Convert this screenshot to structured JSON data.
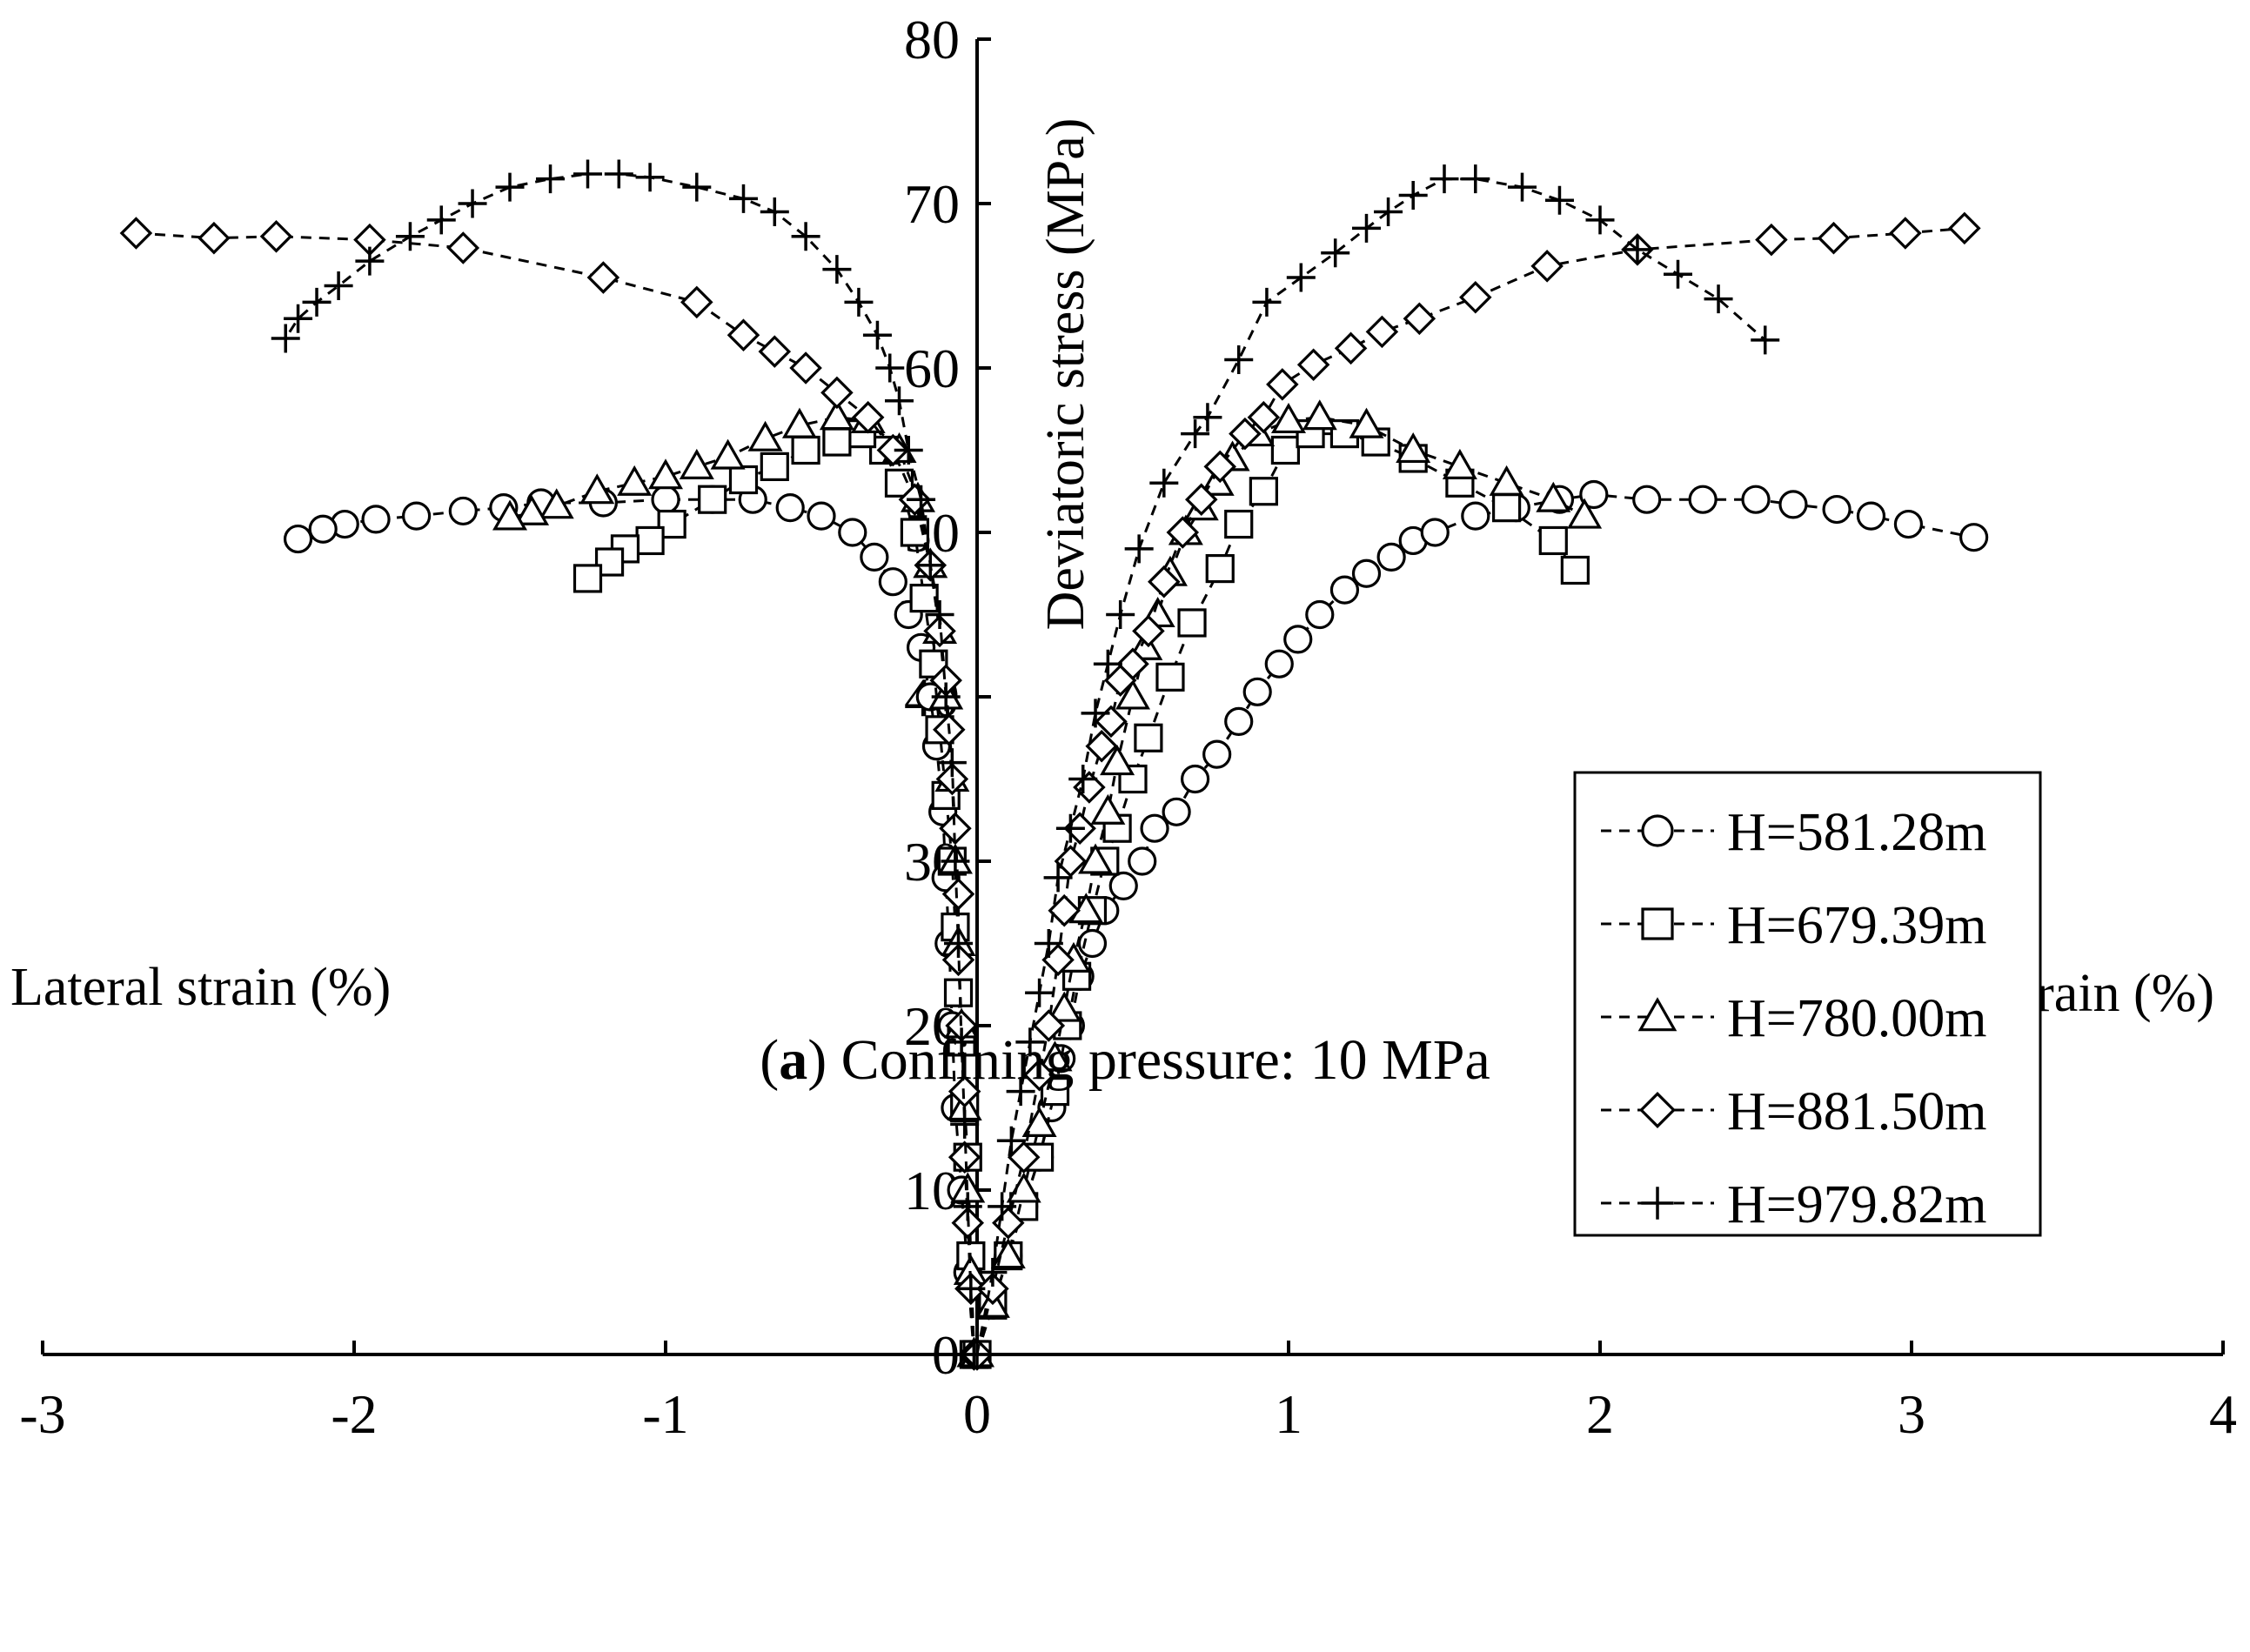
{
  "chart_data": {
    "type": "line",
    "caption": {
      "letter": "a",
      "text": " Confining pressure: 10 MPa"
    },
    "ylabel": "Deviatoric stress (MPa)",
    "xlabel_left": "Lateral strain (%)",
    "xlabel_right": "Axial strain (%)",
    "xlim": [
      -3,
      4
    ],
    "ylim": [
      0,
      80
    ],
    "xticks": [
      -3,
      -2,
      -1,
      0,
      1,
      2,
      3,
      4
    ],
    "xtick_labels": [
      "-3",
      "-2",
      "-1",
      "0",
      "1",
      "2",
      "3",
      "4"
    ],
    "yticks": [
      0,
      10,
      20,
      30,
      40,
      50,
      60,
      70,
      80
    ],
    "ytick_labels": [
      "0",
      "10",
      "20",
      "30",
      "40",
      "50",
      "60",
      "70",
      "80"
    ],
    "legend_position": "right",
    "series": [
      {
        "name": "H=581.28m",
        "marker": "circle",
        "lateral": [
          [
            -0.01,
            0
          ],
          [
            -0.03,
            5
          ],
          [
            -0.05,
            10
          ],
          [
            -0.07,
            15
          ],
          [
            -0.08,
            20
          ],
          [
            -0.09,
            25
          ],
          [
            -0.1,
            29
          ],
          [
            -0.11,
            33
          ],
          [
            -0.13,
            37
          ],
          [
            -0.15,
            40
          ],
          [
            -0.18,
            43
          ],
          [
            -0.22,
            45
          ],
          [
            -0.27,
            47
          ],
          [
            -0.33,
            48.5
          ],
          [
            -0.4,
            50
          ],
          [
            -0.5,
            51
          ],
          [
            -0.6,
            51.5
          ],
          [
            -0.72,
            52
          ],
          [
            -0.85,
            52
          ],
          [
            -1.0,
            52
          ],
          [
            -1.2,
            51.8
          ],
          [
            -1.4,
            51.8
          ],
          [
            -1.52,
            51.5
          ],
          [
            -1.65,
            51.3
          ],
          [
            -1.8,
            51
          ],
          [
            -1.93,
            50.8
          ],
          [
            -2.03,
            50.5
          ],
          [
            -2.1,
            50.2
          ],
          [
            -2.18,
            49.6
          ]
        ],
        "axial": [
          [
            0.0,
            0
          ],
          [
            0.05,
            3
          ],
          [
            0.1,
            6
          ],
          [
            0.15,
            9
          ],
          [
            0.2,
            12
          ],
          [
            0.24,
            15
          ],
          [
            0.27,
            18
          ],
          [
            0.3,
            20
          ],
          [
            0.33,
            23
          ],
          [
            0.37,
            25
          ],
          [
            0.41,
            27
          ],
          [
            0.47,
            28.5
          ],
          [
            0.53,
            30
          ],
          [
            0.57,
            32
          ],
          [
            0.64,
            33
          ],
          [
            0.7,
            35
          ],
          [
            0.77,
            36.5
          ],
          [
            0.84,
            38.5
          ],
          [
            0.9,
            40.3
          ],
          [
            0.97,
            42
          ],
          [
            1.03,
            43.5
          ],
          [
            1.1,
            45
          ],
          [
            1.18,
            46.5
          ],
          [
            1.25,
            47.5
          ],
          [
            1.33,
            48.5
          ],
          [
            1.4,
            49.5
          ],
          [
            1.47,
            50
          ],
          [
            1.6,
            51
          ],
          [
            1.73,
            51.5
          ],
          [
            1.87,
            52
          ],
          [
            1.98,
            52.3
          ],
          [
            2.15,
            52
          ],
          [
            2.33,
            52
          ],
          [
            2.5,
            52
          ],
          [
            2.62,
            51.7
          ],
          [
            2.76,
            51.4
          ],
          [
            2.87,
            51
          ],
          [
            2.99,
            50.5
          ],
          [
            3.2,
            49.7
          ]
        ]
      },
      {
        "name": "H=679.39m",
        "marker": "square",
        "lateral": [
          [
            -0.01,
            0
          ],
          [
            -0.02,
            6
          ],
          [
            -0.03,
            12
          ],
          [
            -0.04,
            15
          ],
          [
            -0.05,
            19
          ],
          [
            -0.06,
            22
          ],
          [
            -0.07,
            26
          ],
          [
            -0.08,
            30
          ],
          [
            -0.1,
            34
          ],
          [
            -0.12,
            38
          ],
          [
            -0.14,
            42
          ],
          [
            -0.17,
            46
          ],
          [
            -0.2,
            50
          ],
          [
            -0.25,
            53
          ],
          [
            -0.3,
            55
          ],
          [
            -0.37,
            56
          ],
          [
            -0.45,
            55.5
          ],
          [
            -0.55,
            55
          ],
          [
            -0.65,
            54
          ],
          [
            -0.75,
            53.2
          ],
          [
            -0.85,
            52
          ],
          [
            -0.98,
            50.5
          ],
          [
            -1.05,
            49.5
          ],
          [
            -1.13,
            49
          ],
          [
            -1.18,
            48.2
          ],
          [
            -1.25,
            47.2
          ]
        ],
        "axial": [
          [
            0.0,
            0
          ],
          [
            0.05,
            3
          ],
          [
            0.1,
            6
          ],
          [
            0.15,
            9
          ],
          [
            0.2,
            12
          ],
          [
            0.25,
            16
          ],
          [
            0.29,
            20
          ],
          [
            0.32,
            23
          ],
          [
            0.37,
            27
          ],
          [
            0.41,
            30
          ],
          [
            0.45,
            32
          ],
          [
            0.5,
            35
          ],
          [
            0.55,
            37.5
          ],
          [
            0.62,
            41.2
          ],
          [
            0.69,
            44.5
          ],
          [
            0.78,
            47.8
          ],
          [
            0.84,
            50.5
          ],
          [
            0.92,
            52.5
          ],
          [
            0.99,
            55
          ],
          [
            1.07,
            56
          ],
          [
            1.18,
            56
          ],
          [
            1.28,
            55.5
          ],
          [
            1.4,
            54.5
          ],
          [
            1.55,
            53
          ],
          [
            1.7,
            51.5
          ],
          [
            1.85,
            49.5
          ],
          [
            1.92,
            47.7
          ]
        ]
      },
      {
        "name": "H=780.00m",
        "marker": "triangle",
        "lateral": [
          [
            -0.01,
            0
          ],
          [
            -0.02,
            5
          ],
          [
            -0.03,
            10
          ],
          [
            -0.04,
            15
          ],
          [
            -0.05,
            20
          ],
          [
            -0.06,
            25
          ],
          [
            -0.07,
            30
          ],
          [
            -0.08,
            35
          ],
          [
            -0.1,
            40
          ],
          [
            -0.12,
            44
          ],
          [
            -0.15,
            48
          ],
          [
            -0.19,
            52
          ],
          [
            -0.25,
            55
          ],
          [
            -0.35,
            56.8
          ],
          [
            -0.45,
            57
          ],
          [
            -0.57,
            56.5
          ],
          [
            -0.68,
            55.7
          ],
          [
            -0.8,
            54.6
          ],
          [
            -0.9,
            54
          ],
          [
            -1.0,
            53.4
          ],
          [
            -1.1,
            53
          ],
          [
            -1.22,
            52.5
          ],
          [
            -1.35,
            51.6
          ],
          [
            -1.43,
            51.2
          ],
          [
            -1.5,
            50.9
          ]
        ],
        "axial": [
          [
            0.0,
            0
          ],
          [
            0.05,
            3
          ],
          [
            0.1,
            6
          ],
          [
            0.15,
            10
          ],
          [
            0.2,
            14
          ],
          [
            0.25,
            18
          ],
          [
            0.28,
            21
          ],
          [
            0.31,
            24
          ],
          [
            0.35,
            27
          ],
          [
            0.38,
            30
          ],
          [
            0.42,
            33
          ],
          [
            0.45,
            36
          ],
          [
            0.5,
            40
          ],
          [
            0.54,
            43
          ],
          [
            0.58,
            45
          ],
          [
            0.62,
            47.5
          ],
          [
            0.67,
            50
          ],
          [
            0.72,
            51.5
          ],
          [
            0.77,
            53
          ],
          [
            0.82,
            54.5
          ],
          [
            0.9,
            56
          ],
          [
            1.0,
            56.8
          ],
          [
            1.1,
            57
          ],
          [
            1.25,
            56.5
          ],
          [
            1.4,
            55
          ],
          [
            1.55,
            54
          ],
          [
            1.7,
            53
          ],
          [
            1.85,
            52
          ],
          [
            1.95,
            51
          ]
        ]
      },
      {
        "name": "H=881.50m",
        "marker": "diamond",
        "lateral": [
          [
            -0.01,
            0
          ],
          [
            -0.02,
            4
          ],
          [
            -0.03,
            8
          ],
          [
            -0.04,
            12
          ],
          [
            -0.04,
            16
          ],
          [
            -0.05,
            20
          ],
          [
            -0.06,
            24
          ],
          [
            -0.06,
            28
          ],
          [
            -0.07,
            32
          ],
          [
            -0.08,
            35
          ],
          [
            -0.09,
            38
          ],
          [
            -0.1,
            41
          ],
          [
            -0.12,
            44
          ],
          [
            -0.15,
            48
          ],
          [
            -0.2,
            52
          ],
          [
            -0.27,
            55
          ],
          [
            -0.35,
            57
          ],
          [
            -0.45,
            58.5
          ],
          [
            -0.55,
            60
          ],
          [
            -0.65,
            61
          ],
          [
            -0.75,
            62
          ],
          [
            -0.9,
            64
          ],
          [
            -1.2,
            65.5
          ],
          [
            -1.65,
            67.3
          ],
          [
            -1.95,
            67.8
          ],
          [
            -2.25,
            68
          ],
          [
            -2.45,
            67.9
          ],
          [
            -2.7,
            68.2
          ]
        ],
        "axial": [
          [
            0.0,
            0
          ],
          [
            0.05,
            4
          ],
          [
            0.1,
            8
          ],
          [
            0.15,
            12
          ],
          [
            0.2,
            17
          ],
          [
            0.23,
            20
          ],
          [
            0.26,
            24
          ],
          [
            0.28,
            27
          ],
          [
            0.3,
            30
          ],
          [
            0.33,
            32
          ],
          [
            0.36,
            34.5
          ],
          [
            0.4,
            37
          ],
          [
            0.43,
            38.5
          ],
          [
            0.46,
            41
          ],
          [
            0.5,
            42
          ],
          [
            0.55,
            44
          ],
          [
            0.6,
            47
          ],
          [
            0.66,
            50
          ],
          [
            0.72,
            52
          ],
          [
            0.78,
            54
          ],
          [
            0.86,
            56
          ],
          [
            0.92,
            57
          ],
          [
            0.98,
            59
          ],
          [
            1.08,
            60.2
          ],
          [
            1.2,
            61.2
          ],
          [
            1.3,
            62.2
          ],
          [
            1.42,
            63
          ],
          [
            1.6,
            64.3
          ],
          [
            1.83,
            66.2
          ],
          [
            2.12,
            67.2
          ],
          [
            2.55,
            67.8
          ],
          [
            2.75,
            67.9
          ],
          [
            2.98,
            68.2
          ],
          [
            3.17,
            68.5
          ]
        ]
      },
      {
        "name": "H=979.82m",
        "marker": "plus",
        "lateral": [
          [
            -0.01,
            0
          ],
          [
            -0.02,
            4
          ],
          [
            -0.03,
            9
          ],
          [
            -0.04,
            14
          ],
          [
            -0.05,
            19
          ],
          [
            -0.06,
            25
          ],
          [
            -0.07,
            30
          ],
          [
            -0.08,
            36
          ],
          [
            -0.1,
            40
          ],
          [
            -0.12,
            45
          ],
          [
            -0.15,
            48
          ],
          [
            -0.18,
            52
          ],
          [
            -0.22,
            55
          ],
          [
            -0.25,
            58
          ],
          [
            -0.28,
            60
          ],
          [
            -0.32,
            62
          ],
          [
            -0.38,
            64
          ],
          [
            -0.45,
            66
          ],
          [
            -0.55,
            68
          ],
          [
            -0.65,
            69.5
          ],
          [
            -0.75,
            70.3
          ],
          [
            -0.9,
            71
          ],
          [
            -1.05,
            71.6
          ],
          [
            -1.15,
            71.8
          ],
          [
            -1.25,
            71.8
          ],
          [
            -1.37,
            71.5
          ],
          [
            -1.5,
            71
          ],
          [
            -1.62,
            70
          ],
          [
            -1.72,
            69
          ],
          [
            -1.82,
            68
          ],
          [
            -1.95,
            66.5
          ],
          [
            -2.05,
            65
          ],
          [
            -2.12,
            64
          ],
          [
            -2.18,
            63
          ],
          [
            -2.22,
            61.8
          ]
        ],
        "axial": [
          [
            0.0,
            0
          ],
          [
            0.05,
            5
          ],
          [
            0.08,
            9
          ],
          [
            0.11,
            13
          ],
          [
            0.14,
            16
          ],
          [
            0.17,
            19
          ],
          [
            0.2,
            22
          ],
          [
            0.23,
            25
          ],
          [
            0.26,
            29
          ],
          [
            0.3,
            32
          ],
          [
            0.34,
            35
          ],
          [
            0.38,
            39
          ],
          [
            0.42,
            42
          ],
          [
            0.46,
            45
          ],
          [
            0.52,
            49
          ],
          [
            0.6,
            53
          ],
          [
            0.7,
            56
          ],
          [
            0.74,
            57
          ],
          [
            0.84,
            60.5
          ],
          [
            0.93,
            64
          ],
          [
            1.04,
            65.5
          ],
          [
            1.15,
            67
          ],
          [
            1.25,
            68.5
          ],
          [
            1.32,
            69.5
          ],
          [
            1.4,
            70.5
          ],
          [
            1.5,
            71.5
          ],
          [
            1.6,
            71.5
          ],
          [
            1.75,
            71
          ],
          [
            1.87,
            70.2
          ],
          [
            2.0,
            69
          ],
          [
            2.12,
            67.2
          ],
          [
            2.25,
            65.7
          ],
          [
            2.38,
            64.2
          ],
          [
            2.53,
            61.7
          ]
        ]
      }
    ]
  }
}
